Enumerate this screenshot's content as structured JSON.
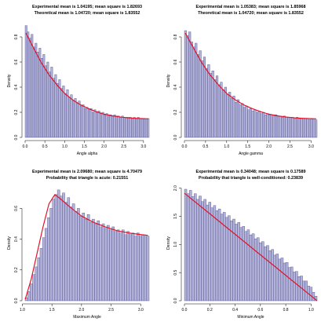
{
  "colors": {
    "bar_fill": "#b3b3d9",
    "bar_stroke": "#4a4a8a",
    "curve": "#e0142d",
    "axis": "#000000"
  },
  "chart_data": [
    {
      "type": "bar",
      "title_line1": "Experimental mean is 1.04195; mean square is 1.82693",
      "title_line2": "Theoretical mean is 1.04720; mean square is 1.83552",
      "xlabel": "Angle alpha",
      "ylabel": "Density",
      "xlim": [
        0,
        3.14159
      ],
      "ylim": [
        0,
        0.9
      ],
      "xticks": [
        "0.0",
        "0.5",
        "1.0",
        "1.5",
        "2.0",
        "2.5",
        "3.0"
      ],
      "xtick_values": [
        0,
        0.5,
        1,
        1.5,
        2,
        2.5,
        3
      ],
      "yticks": [
        "0.0",
        "0.2",
        "0.4",
        "0.6",
        "0.8"
      ],
      "ytick_values": [
        0,
        0.2,
        0.4,
        0.6,
        0.8
      ],
      "bins": 63,
      "densities": [
        0.89,
        0.84,
        0.79,
        0.82,
        0.72,
        0.75,
        0.68,
        0.71,
        0.63,
        0.66,
        0.57,
        0.6,
        0.52,
        0.56,
        0.47,
        0.5,
        0.43,
        0.46,
        0.39,
        0.41,
        0.35,
        0.38,
        0.32,
        0.34,
        0.29,
        0.31,
        0.27,
        0.29,
        0.25,
        0.26,
        0.23,
        0.24,
        0.22,
        0.23,
        0.2,
        0.22,
        0.2,
        0.21,
        0.19,
        0.2,
        0.18,
        0.19,
        0.18,
        0.18,
        0.17,
        0.18,
        0.17,
        0.17,
        0.16,
        0.17,
        0.16,
        0.16,
        0.16,
        0.16,
        0.15,
        0.16,
        0.15,
        0.16,
        0.15,
        0.15,
        0.15,
        0.14,
        0.15
      ],
      "curve": {
        "x": [
          0.02,
          0.2,
          0.4,
          0.6,
          0.8,
          1.0,
          1.2,
          1.4,
          1.6,
          1.8,
          2.0,
          2.2,
          2.4,
          2.6,
          2.8,
          3.0,
          3.12
        ],
        "y": [
          0.83,
          0.72,
          0.6,
          0.5,
          0.42,
          0.35,
          0.3,
          0.26,
          0.23,
          0.205,
          0.185,
          0.172,
          0.163,
          0.156,
          0.152,
          0.149,
          0.148
        ]
      }
    },
    {
      "type": "bar",
      "title_line1": "Experimental mean is 1.05383; mean square is 1.85968",
      "title_line2": "Theoretical mean is 1.04720; mean square is 1.83552",
      "xlabel": "Angle gamma",
      "ylabel": "Density",
      "xlim": [
        0,
        3.14159
      ],
      "ylim": [
        0,
        0.9
      ],
      "xticks": [
        "0.0",
        "0.5",
        "1.0",
        "1.5",
        "2.0",
        "2.5",
        "3.0"
      ],
      "xtick_values": [
        0,
        0.5,
        1,
        1.5,
        2,
        2.5,
        3
      ],
      "yticks": [
        "0.0",
        "0.2",
        "0.4",
        "0.6",
        "0.8"
      ],
      "ytick_values": [
        0,
        0.2,
        0.4,
        0.6,
        0.8
      ],
      "bins": 63,
      "densities": [
        0.85,
        0.81,
        0.84,
        0.76,
        0.72,
        0.75,
        0.66,
        0.69,
        0.61,
        0.64,
        0.55,
        0.58,
        0.51,
        0.53,
        0.46,
        0.49,
        0.42,
        0.44,
        0.38,
        0.4,
        0.34,
        0.36,
        0.31,
        0.33,
        0.28,
        0.3,
        0.26,
        0.27,
        0.24,
        0.25,
        0.22,
        0.23,
        0.21,
        0.22,
        0.2,
        0.21,
        0.19,
        0.2,
        0.18,
        0.19,
        0.18,
        0.18,
        0.17,
        0.18,
        0.17,
        0.17,
        0.16,
        0.17,
        0.16,
        0.16,
        0.16,
        0.16,
        0.15,
        0.16,
        0.15,
        0.15,
        0.15,
        0.15,
        0.15,
        0.14,
        0.15,
        0.14,
        0.14
      ],
      "curve": {
        "x": [
          0.02,
          0.2,
          0.4,
          0.6,
          0.8,
          1.0,
          1.2,
          1.4,
          1.6,
          1.8,
          2.0,
          2.2,
          2.4,
          2.6,
          2.8,
          3.0,
          3.12
        ],
        "y": [
          0.83,
          0.72,
          0.6,
          0.5,
          0.42,
          0.35,
          0.3,
          0.26,
          0.23,
          0.205,
          0.185,
          0.172,
          0.163,
          0.156,
          0.152,
          0.149,
          0.148
        ]
      }
    },
    {
      "type": "bar",
      "title_line1": "Experimental mean is 2.09680; mean square is 4.70479",
      "title_line2": "Probability that triangle is acute: 0.21551",
      "xlabel": "Maximum Angle",
      "ylabel": "Density",
      "xlim": [
        1.0472,
        3.14159
      ],
      "ylim": [
        0,
        0.75
      ],
      "xticks": [
        "1.0",
        "1.5",
        "2.0",
        "2.5",
        "3.0"
      ],
      "xtick_values": [
        1,
        1.5,
        2,
        2.5,
        3
      ],
      "yticks": [
        "0.0",
        "0.2",
        "0.4",
        "0.6"
      ],
      "ytick_values": [
        0,
        0.2,
        0.4,
        0.6
      ],
      "bins": 50,
      "densities": [
        0.02,
        0.06,
        0.11,
        0.17,
        0.22,
        0.28,
        0.34,
        0.41,
        0.47,
        0.54,
        0.6,
        0.66,
        0.69,
        0.72,
        0.68,
        0.7,
        0.64,
        0.67,
        0.61,
        0.63,
        0.58,
        0.6,
        0.55,
        0.57,
        0.53,
        0.56,
        0.51,
        0.53,
        0.5,
        0.52,
        0.48,
        0.5,
        0.47,
        0.49,
        0.46,
        0.48,
        0.45,
        0.46,
        0.44,
        0.46,
        0.43,
        0.45,
        0.43,
        0.44,
        0.42,
        0.44,
        0.42,
        0.43,
        0.42,
        0.42
      ],
      "curve": {
        "x": [
          1.05,
          1.15,
          1.25,
          1.35,
          1.45,
          1.55,
          1.65,
          1.8,
          2.0,
          2.2,
          2.4,
          2.6,
          2.8,
          3.0,
          3.12
        ],
        "y": [
          0.01,
          0.14,
          0.31,
          0.48,
          0.63,
          0.69,
          0.66,
          0.61,
          0.55,
          0.51,
          0.48,
          0.455,
          0.44,
          0.43,
          0.425
        ]
      }
    },
    {
      "type": "bar",
      "title_line1": "Experimental mean is 0.34048; mean square is 0.17589",
      "title_line2": "Probability that triangle is well-conditioned: 0.23839",
      "xlabel": "Minimum Angle",
      "ylabel": "Density",
      "xlim": [
        0,
        1.0472
      ],
      "ylim": [
        0,
        2.05
      ],
      "xticks": [
        "0.0",
        "0.2",
        "0.4",
        "0.6",
        "0.8",
        "1.0"
      ],
      "xtick_values": [
        0,
        0.2,
        0.4,
        0.6,
        0.8,
        1
      ],
      "yticks": [
        "0.0",
        "0.5",
        "1.0",
        "1.5",
        "2.0"
      ],
      "ytick_values": [
        0,
        0.5,
        1,
        1.5,
        2
      ],
      "bins": 55,
      "densities": [
        1.98,
        1.9,
        1.96,
        1.85,
        1.9,
        1.8,
        1.86,
        1.76,
        1.8,
        1.7,
        1.75,
        1.65,
        1.69,
        1.6,
        1.63,
        1.54,
        1.57,
        1.48,
        1.51,
        1.42,
        1.45,
        1.36,
        1.39,
        1.3,
        1.32,
        1.23,
        1.26,
        1.17,
        1.19,
        1.1,
        1.12,
        1.03,
        1.05,
        0.96,
        0.98,
        0.89,
        0.91,
        0.81,
        0.83,
        0.74,
        0.76,
        0.67,
        0.68,
        0.59,
        0.6,
        0.51,
        0.52,
        0.43,
        0.44,
        0.35,
        0.35,
        0.26,
        0.24,
        0.15,
        0.08
      ],
      "curve": {
        "x": [
          0.0,
          1.0472
        ],
        "y": [
          1.91,
          0.0
        ]
      }
    }
  ]
}
